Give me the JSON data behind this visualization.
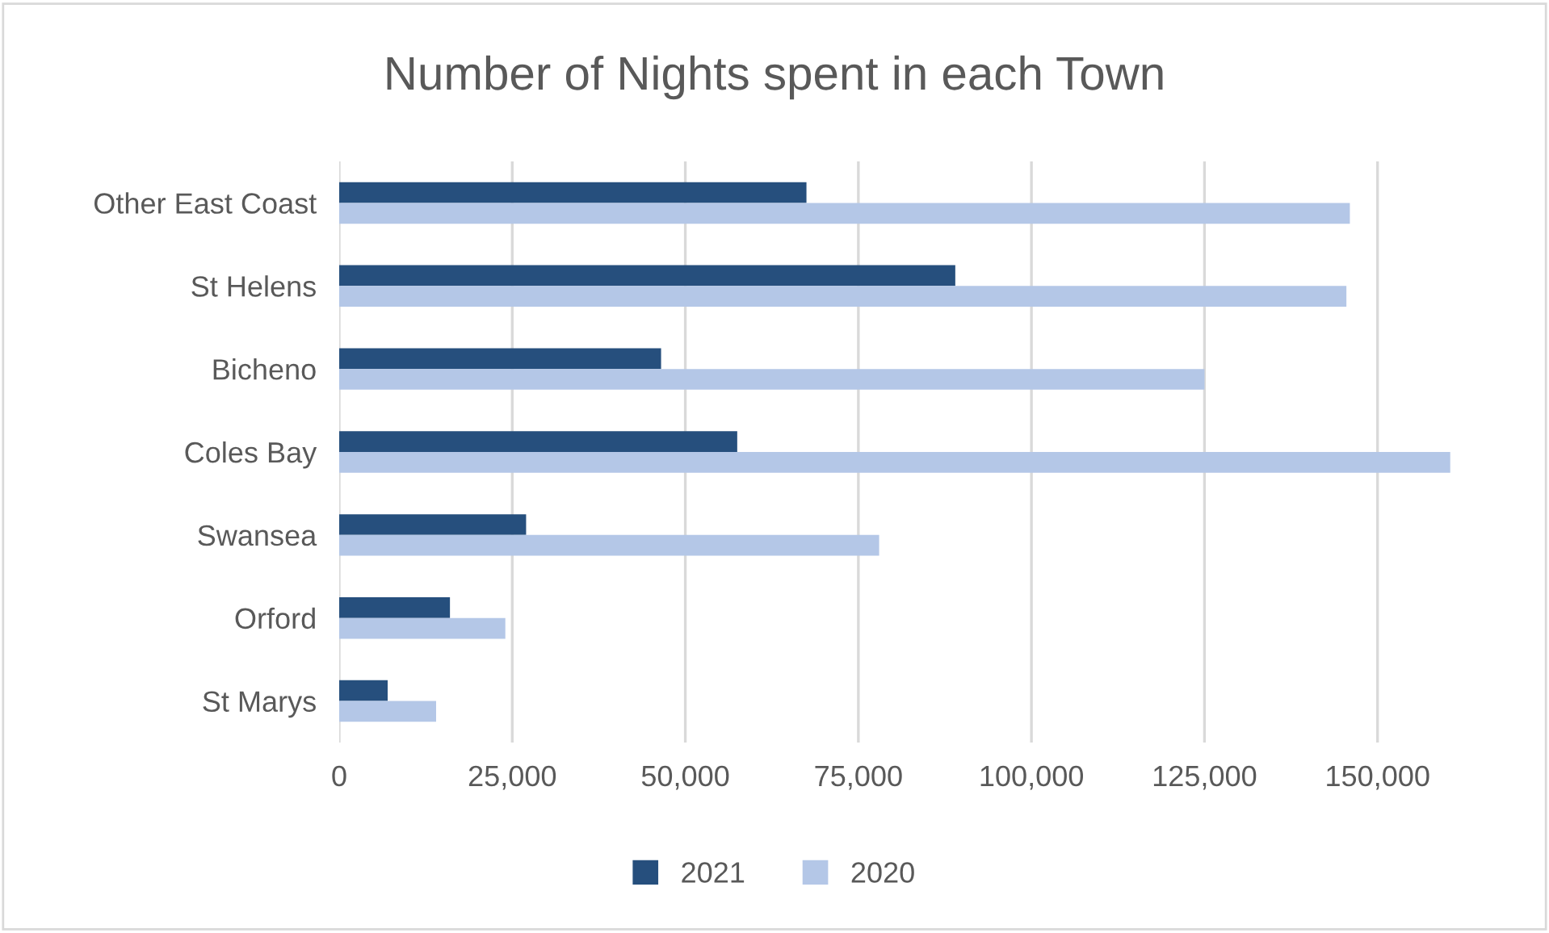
{
  "chart_data": {
    "type": "bar",
    "orientation": "horizontal",
    "title": "Number of Nights spent in each Town",
    "categories": [
      "Other East Coast",
      "St Helens",
      "Bicheno",
      "Coles Bay",
      "Swansea",
      "Orford",
      "St Marys"
    ],
    "series": [
      {
        "name": "2021",
        "color": "#264f7d",
        "values": [
          67500,
          89000,
          46500,
          57500,
          27000,
          16000,
          7000
        ]
      },
      {
        "name": "2020",
        "color": "#b4c7e7",
        "values": [
          146000,
          145500,
          125000,
          160500,
          78000,
          24000,
          14000
        ]
      }
    ],
    "xlim": [
      0,
      161000
    ],
    "xticks": [
      {
        "value": 0,
        "label": "0"
      },
      {
        "value": 25000,
        "label": "25,000"
      },
      {
        "value": 50000,
        "label": "50,000"
      },
      {
        "value": 75000,
        "label": "75,000"
      },
      {
        "value": 100000,
        "label": "100,000"
      },
      {
        "value": 125000,
        "label": "125,000"
      },
      {
        "value": 150000,
        "label": "150,000"
      }
    ],
    "grid": "x",
    "legend": "bottom"
  }
}
